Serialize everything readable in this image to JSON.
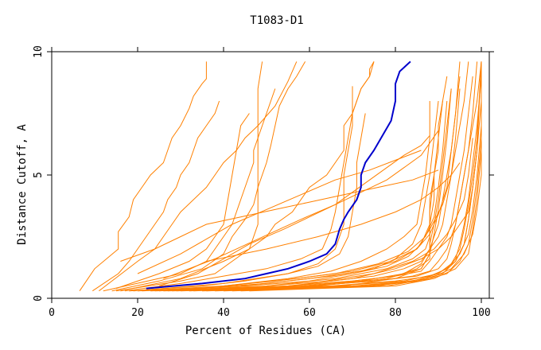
{
  "chart_data": {
    "type": "line",
    "title": "T1083-D1",
    "xlabel": "Percent of Residues (CA)",
    "ylabel": "Distance Cutoff, A",
    "xlim": [
      0,
      100
    ],
    "ylim": [
      0,
      10
    ],
    "xticks": [
      "0",
      "20",
      "40",
      "60",
      "80",
      "100"
    ],
    "yticks": [
      "0",
      "5",
      "10"
    ],
    "grid": false,
    "colors": {
      "highlight": "#0000cc",
      "others": "#ff8000"
    },
    "highlight_series": {
      "x": [
        22,
        35,
        45,
        50,
        55,
        60,
        64,
        66,
        67,
        68,
        69,
        71,
        72,
        72,
        73,
        75,
        77,
        79,
        80,
        80,
        81,
        83.5
      ],
      "y": [
        0.4,
        0.6,
        0.8,
        1.0,
        1.2,
        1.5,
        1.8,
        2.2,
        2.8,
        3.2,
        3.5,
        4.0,
        4.5,
        5.0,
        5.5,
        6.0,
        6.6,
        7.2,
        8.0,
        8.7,
        9.2,
        9.6
      ]
    },
    "other_series": [
      {
        "x": [
          6.5,
          10,
          15.5,
          15.5,
          18,
          19,
          21,
          23,
          26,
          27,
          28,
          30,
          32,
          33,
          35,
          36,
          36
        ],
        "y": [
          0.3,
          1.2,
          2.0,
          2.7,
          3.3,
          4.0,
          4.5,
          5.0,
          5.5,
          6.0,
          6.5,
          7.0,
          7.7,
          8.2,
          8.7,
          8.9,
          9.6
        ]
      },
      {
        "x": [
          9.5,
          15.5,
          18,
          20,
          22,
          24,
          26,
          27,
          29,
          30,
          32,
          33,
          34,
          36,
          38,
          39
        ],
        "y": [
          0.3,
          1.0,
          1.5,
          2.0,
          2.5,
          3.0,
          3.5,
          4.0,
          4.5,
          5.0,
          5.5,
          6.0,
          6.5,
          7.0,
          7.5,
          8.0
        ]
      },
      {
        "x": [
          11,
          20,
          24,
          26,
          28,
          30,
          33,
          36,
          38,
          40,
          43,
          45,
          48,
          52,
          55,
          57
        ],
        "y": [
          0.3,
          1.5,
          2.0,
          2.5,
          3.0,
          3.5,
          4.0,
          4.5,
          5.0,
          5.5,
          6.0,
          6.5,
          7.0,
          7.8,
          8.8,
          9.6
        ]
      },
      {
        "x": [
          12,
          30,
          36,
          38,
          40,
          42,
          43,
          44,
          45,
          46,
          47,
          47,
          48,
          49,
          50,
          51,
          52
        ],
        "y": [
          0.3,
          1.0,
          1.5,
          2.0,
          2.5,
          3.0,
          3.5,
          4.0,
          4.5,
          5.0,
          5.5,
          6.0,
          6.5,
          7.0,
          7.5,
          8.0,
          8.5
        ]
      },
      {
        "x": [
          14,
          25,
          35,
          40,
          42,
          45,
          47,
          48,
          49,
          50,
          51,
          52,
          53,
          55,
          57,
          59
        ],
        "y": [
          0.3,
          0.7,
          1.2,
          1.8,
          2.5,
          3.2,
          3.8,
          4.5,
          5.0,
          5.5,
          6.2,
          7.0,
          7.8,
          8.5,
          9.0,
          9.6
        ]
      },
      {
        "x": [
          15,
          25,
          32,
          36,
          38,
          40,
          41,
          42,
          43,
          44,
          46
        ],
        "y": [
          0.4,
          1.0,
          1.5,
          2.0,
          2.5,
          3.0,
          4.0,
          5.0,
          6.0,
          7.0,
          7.5
        ]
      },
      {
        "x": [
          15,
          30,
          38,
          42,
          46,
          48,
          48,
          48,
          48,
          48,
          49
        ],
        "y": [
          0.3,
          0.7,
          1.0,
          1.5,
          2.0,
          3.0,
          4.0,
          5.0,
          7.0,
          8.5,
          9.6
        ]
      },
      {
        "x": [
          16,
          30,
          40,
          46,
          50,
          52,
          56,
          60,
          64,
          66,
          68,
          68,
          70,
          71,
          72,
          74,
          74,
          75
        ],
        "y": [
          0.3,
          0.8,
          1.5,
          2.0,
          2.5,
          3.0,
          3.5,
          4.5,
          5.0,
          5.5,
          6.0,
          7.0,
          7.5,
          8.0,
          8.5,
          9.0,
          9.3,
          9.6
        ]
      },
      {
        "x": [
          17,
          30,
          40,
          50,
          58,
          63,
          65,
          66,
          67,
          68,
          69,
          70,
          72,
          74,
          75
        ],
        "y": [
          0.3,
          0.6,
          0.9,
          1.2,
          1.6,
          2.0,
          2.8,
          3.5,
          4.5,
          5.5,
          6.5,
          7.5,
          8.5,
          9.0,
          9.6
        ]
      },
      {
        "x": [
          18,
          35,
          45,
          55,
          62,
          67,
          69,
          70,
          71,
          71,
          72,
          73
        ],
        "y": [
          0.3,
          0.5,
          0.7,
          1.0,
          1.3,
          1.8,
          2.5,
          3.5,
          4.5,
          5.5,
          6.5,
          7.5
        ]
      },
      {
        "x": [
          19,
          40,
          55,
          62,
          66,
          68,
          68,
          68,
          69,
          70,
          70,
          70
        ],
        "y": [
          0.3,
          0.6,
          1.0,
          1.4,
          2.0,
          3.0,
          4.0,
          5.0,
          6.0,
          7.0,
          8.0,
          8.6
        ]
      },
      {
        "x": [
          20,
          40,
          55,
          65,
          72,
          78,
          82,
          85,
          86,
          87,
          88,
          88
        ],
        "y": [
          0.3,
          0.5,
          0.8,
          1.1,
          1.5,
          2.0,
          2.5,
          3.0,
          4.0,
          5.0,
          6.5,
          8.0
        ]
      },
      {
        "x": [
          21,
          45,
          60,
          70,
          78,
          83,
          86,
          88,
          88,
          89,
          90,
          90,
          91,
          92
        ],
        "y": [
          0.3,
          0.5,
          0.7,
          1.0,
          1.3,
          1.7,
          2.2,
          3.0,
          4.0,
          5.0,
          6.0,
          7.0,
          8.0,
          9.0
        ]
      },
      {
        "x": [
          23,
          50,
          65,
          75,
          82,
          86,
          88,
          90,
          91,
          92,
          93,
          94,
          95,
          96,
          97
        ],
        "y": [
          0.3,
          0.5,
          0.7,
          0.9,
          1.2,
          1.5,
          2.0,
          2.5,
          3.0,
          4.0,
          5.0,
          6.0,
          7.0,
          8.0,
          9.6
        ]
      },
      {
        "x": [
          24,
          55,
          70,
          80,
          86,
          88,
          90,
          92,
          93,
          94,
          95,
          96,
          97,
          98
        ],
        "y": [
          0.3,
          0.5,
          0.7,
          0.9,
          1.1,
          1.5,
          2.0,
          2.5,
          3.0,
          4.0,
          5.0,
          6.0,
          7.5,
          9.0
        ]
      },
      {
        "x": [
          25,
          50,
          65,
          75,
          80,
          84,
          86,
          87,
          88,
          89,
          90
        ],
        "y": [
          0.3,
          0.6,
          0.9,
          1.2,
          1.6,
          2.2,
          3.0,
          4.0,
          5.0,
          6.5,
          8.0
        ]
      },
      {
        "x": [
          26,
          60,
          75,
          84,
          88,
          90,
          92,
          93,
          94,
          95,
          96,
          97,
          98,
          99,
          100
        ],
        "y": [
          0.3,
          0.5,
          0.7,
          0.9,
          1.1,
          1.5,
          2.0,
          2.5,
          3.0,
          4.0,
          5.0,
          6.0,
          7.0,
          8.0,
          9.6
        ]
      },
      {
        "x": [
          27,
          55,
          70,
          80,
          85,
          88,
          88,
          89,
          90,
          91,
          92,
          93
        ],
        "y": [
          0.3,
          0.5,
          0.7,
          0.9,
          1.2,
          1.6,
          2.2,
          3.0,
          4.0,
          5.5,
          7.0,
          8.5
        ]
      },
      {
        "x": [
          28,
          60,
          75,
          85,
          90,
          92,
          93,
          94,
          95,
          96,
          97,
          98,
          99
        ],
        "y": [
          0.3,
          0.5,
          0.7,
          0.9,
          1.2,
          1.6,
          2.2,
          3.0,
          4.0,
          5.0,
          6.0,
          7.5,
          9.6
        ]
      },
      {
        "x": [
          29,
          58,
          72,
          82,
          86,
          88,
          90,
          91,
          92,
          93,
          94,
          95
        ],
        "y": [
          0.3,
          0.5,
          0.7,
          1.0,
          1.4,
          2.0,
          3.0,
          4.0,
          5.0,
          6.0,
          7.5,
          9.0
        ]
      },
      {
        "x": [
          30,
          65,
          80,
          88,
          92,
          94,
          95,
          96,
          97,
          98,
          99,
          100
        ],
        "y": [
          0.3,
          0.5,
          0.7,
          0.9,
          1.2,
          1.6,
          2.2,
          3.0,
          4.0,
          5.5,
          7.0,
          9.0
        ]
      },
      {
        "x": [
          32,
          62,
          78,
          86,
          88,
          88,
          88,
          89,
          90,
          91
        ],
        "y": [
          0.3,
          0.5,
          0.8,
          1.2,
          1.8,
          2.5,
          3.5,
          5.0,
          6.5,
          8.0
        ]
      },
      {
        "x": [
          33,
          66,
          82,
          90,
          94,
          96,
          97,
          98,
          99,
          100
        ],
        "y": [
          0.3,
          0.5,
          0.7,
          1.0,
          1.5,
          2.2,
          3.2,
          4.5,
          6.0,
          8.0
        ]
      },
      {
        "x": [
          35,
          70,
          84,
          90,
          93,
          95,
          96,
          97,
          98,
          99,
          100
        ],
        "y": [
          0.3,
          0.5,
          0.7,
          1.0,
          1.4,
          2.0,
          2.8,
          3.8,
          5.0,
          6.5,
          9.6
        ]
      },
      {
        "x": [
          36,
          68,
          80,
          86,
          88,
          89,
          90,
          91,
          92,
          93
        ],
        "y": [
          0.3,
          0.5,
          0.8,
          1.2,
          1.8,
          2.6,
          3.6,
          5.0,
          6.5,
          8.5
        ]
      },
      {
        "x": [
          38,
          72,
          85,
          91,
          94,
          96,
          97,
          98,
          99
        ],
        "y": [
          0.3,
          0.5,
          0.7,
          1.0,
          1.5,
          2.2,
          3.2,
          4.5,
          6.0
        ]
      },
      {
        "x": [
          40,
          74,
          86,
          92,
          95,
          97,
          98,
          99,
          100
        ],
        "y": [
          0.3,
          0.5,
          0.7,
          1.0,
          1.5,
          2.2,
          3.2,
          4.5,
          6.5
        ]
      },
      {
        "x": [
          42,
          76,
          87,
          92,
          95,
          97,
          98,
          99,
          100
        ],
        "y": [
          0.3,
          0.5,
          0.8,
          1.2,
          1.8,
          2.6,
          3.6,
          5.0,
          7.0
        ]
      },
      {
        "x": [
          44,
          78,
          88,
          93,
          96,
          98,
          99,
          100,
          100
        ],
        "y": [
          0.3,
          0.5,
          0.8,
          1.2,
          1.8,
          2.6,
          3.6,
          5.0,
          9.6
        ]
      },
      {
        "x": [
          46,
          80,
          89,
          94,
          97,
          98,
          99,
          100
        ],
        "y": [
          0.3,
          0.5,
          0.8,
          1.2,
          1.8,
          2.8,
          4.0,
          6.0
        ]
      },
      {
        "x": [
          25,
          34,
          40,
          46,
          54,
          60,
          66,
          70,
          74,
          78,
          82,
          86,
          88
        ],
        "y": [
          0.5,
          1.0,
          1.6,
          2.2,
          2.8,
          3.3,
          3.8,
          4.3,
          4.8,
          5.3,
          5.8,
          6.2,
          6.6
        ]
      },
      {
        "x": [
          26,
          38,
          48,
          58,
          66,
          72,
          78,
          82,
          86,
          88,
          90
        ],
        "y": [
          0.8,
          1.6,
          2.4,
          3.2,
          3.8,
          4.3,
          4.8,
          5.3,
          5.8,
          6.3,
          6.8
        ]
      },
      {
        "x": [
          20,
          30,
          36,
          42,
          50,
          58,
          66,
          74,
          80,
          86
        ],
        "y": [
          1.0,
          1.8,
          2.4,
          3.0,
          3.6,
          4.2,
          4.8,
          5.2,
          5.6,
          6.0
        ]
      },
      {
        "x": [
          16,
          24,
          30,
          36,
          44,
          52,
          60,
          68,
          76,
          84,
          90
        ],
        "y": [
          1.5,
          2.0,
          2.5,
          3.0,
          3.3,
          3.6,
          3.9,
          4.2,
          4.5,
          4.8,
          5.2
        ]
      },
      {
        "x": [
          36,
          50,
          62,
          72,
          80,
          86,
          90,
          93,
          95
        ],
        "y": [
          1.5,
          2.0,
          2.5,
          3.0,
          3.5,
          4.0,
          4.5,
          5.0,
          5.5
        ]
      },
      {
        "x": [
          55,
          70,
          80,
          86,
          90,
          93,
          95,
          97,
          98,
          99,
          100
        ],
        "y": [
          0.5,
          0.8,
          1.2,
          1.6,
          2.0,
          2.5,
          3.0,
          3.5,
          4.5,
          6.0,
          9.6
        ]
      },
      {
        "x": [
          60,
          75,
          84,
          89,
          92,
          94,
          96,
          97,
          98
        ],
        "y": [
          0.6,
          1.0,
          1.5,
          2.0,
          2.6,
          3.2,
          4.0,
          5.0,
          6.5
        ]
      },
      {
        "x": [
          50,
          66,
          78,
          84,
          87,
          88,
          88,
          89,
          89
        ],
        "y": [
          0.5,
          0.8,
          1.2,
          1.6,
          2.0,
          2.5,
          3.0,
          4.0,
          5.0
        ]
      },
      {
        "x": [
          44,
          60,
          72,
          80,
          85,
          88,
          91,
          93,
          94,
          95
        ],
        "y": [
          0.5,
          0.8,
          1.1,
          1.5,
          2.0,
          2.8,
          3.8,
          5.0,
          6.5,
          8.5
        ]
      },
      {
        "x": [
          40,
          57,
          70,
          79,
          85,
          88,
          90,
          92,
          93,
          94,
          95
        ],
        "y": [
          0.5,
          0.8,
          1.1,
          1.5,
          2.0,
          2.6,
          3.4,
          4.5,
          6.0,
          7.5,
          9.6
        ]
      },
      {
        "x": [
          34,
          52,
          66,
          76,
          83,
          87,
          89,
          90,
          91,
          92
        ],
        "y": [
          0.4,
          0.7,
          1.0,
          1.4,
          1.9,
          2.5,
          3.3,
          4.5,
          6.0,
          8.0
        ]
      }
    ]
  }
}
